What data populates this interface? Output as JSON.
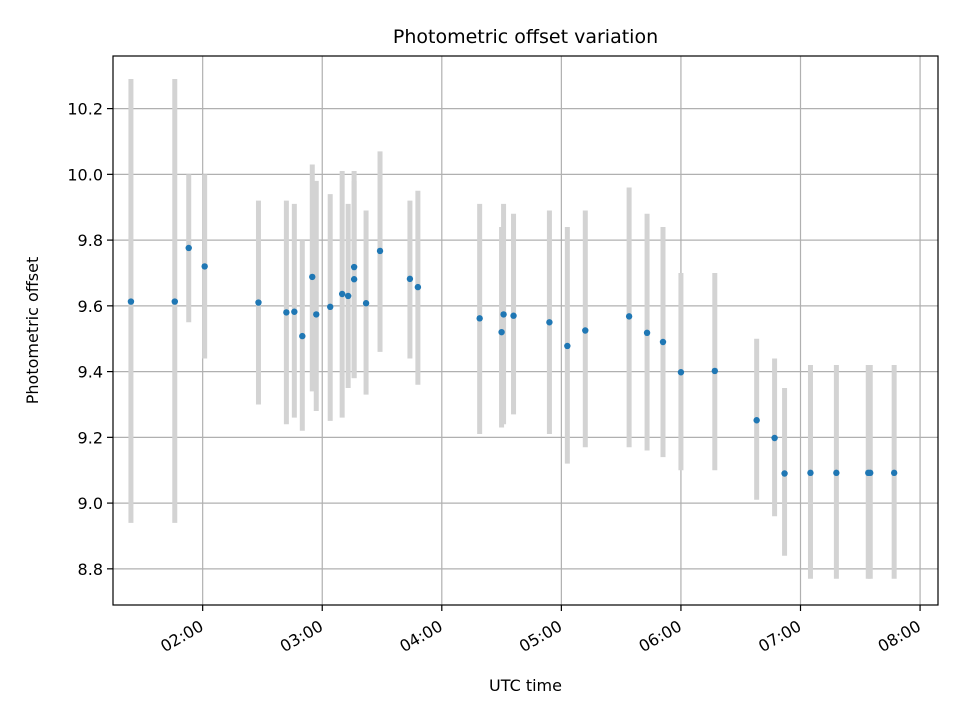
{
  "chart_data": {
    "type": "scatter",
    "title": "Photometric offset variation",
    "xlabel": "UTC time",
    "ylabel": "Photometric offset",
    "x_unit": "hours UTC",
    "xlim": [
      "01:15",
      "08:09"
    ],
    "ylim": [
      8.69,
      10.36
    ],
    "x_ticks": [
      {
        "time": "02:00",
        "label": "02:00"
      },
      {
        "time": "03:00",
        "label": "03:00"
      },
      {
        "time": "04:00",
        "label": "04:00"
      },
      {
        "time": "05:00",
        "label": "05:00"
      },
      {
        "time": "06:00",
        "label": "06:00"
      },
      {
        "time": "07:00",
        "label": "07:00"
      },
      {
        "time": "08:00",
        "label": "08:00"
      }
    ],
    "y_ticks": [
      {
        "value": 8.8,
        "label": "8.8"
      },
      {
        "value": 9.0,
        "label": "9.0"
      },
      {
        "value": 9.2,
        "label": "9.2"
      },
      {
        "value": 9.4,
        "label": "9.4"
      },
      {
        "value": 9.6,
        "label": "9.6"
      },
      {
        "value": 9.8,
        "label": "9.8"
      },
      {
        "value": 10.0,
        "label": "10.0"
      },
      {
        "value": 10.2,
        "label": "10.2"
      }
    ],
    "grid": true,
    "marker_color": "#1f77b4",
    "errorbar_color": "#d3d3d3",
    "points": [
      {
        "time": "01:24",
        "y": 9.613,
        "lo": 8.94,
        "hi": 10.29
      },
      {
        "time": "01:46",
        "y": 9.613,
        "lo": 8.94,
        "hi": 10.29
      },
      {
        "time": "01:53",
        "y": 9.776,
        "lo": 9.55,
        "hi": 10.0
      },
      {
        "time": "02:01",
        "y": 9.72,
        "lo": 9.44,
        "hi": 10.0
      },
      {
        "time": "02:28",
        "y": 9.61,
        "lo": 9.3,
        "hi": 9.92
      },
      {
        "time": "02:42",
        "y": 9.58,
        "lo": 9.24,
        "hi": 9.92
      },
      {
        "time": "02:46",
        "y": 9.582,
        "lo": 9.26,
        "hi": 9.91
      },
      {
        "time": "02:50",
        "y": 9.508,
        "lo": 9.22,
        "hi": 9.8
      },
      {
        "time": "02:55",
        "y": 9.688,
        "lo": 9.34,
        "hi": 10.03
      },
      {
        "time": "02:57",
        "y": 9.574,
        "lo": 9.28,
        "hi": 9.98
      },
      {
        "time": "03:04",
        "y": 9.597,
        "lo": 9.25,
        "hi": 9.94
      },
      {
        "time": "03:10",
        "y": 9.636,
        "lo": 9.26,
        "hi": 10.01
      },
      {
        "time": "03:13",
        "y": 9.63,
        "lo": 9.35,
        "hi": 9.91
      },
      {
        "time": "03:16",
        "y": 9.718,
        "lo": 9.38,
        "hi": 10.01
      },
      {
        "time": "03:16",
        "y": 9.681,
        "lo": 9.38,
        "hi": 9.98
      },
      {
        "time": "03:22",
        "y": 9.608,
        "lo": 9.33,
        "hi": 9.89
      },
      {
        "time": "03:29",
        "y": 9.767,
        "lo": 9.46,
        "hi": 10.07
      },
      {
        "time": "03:44",
        "y": 9.682,
        "lo": 9.44,
        "hi": 9.92
      },
      {
        "time": "03:48",
        "y": 9.657,
        "lo": 9.36,
        "hi": 9.95
      },
      {
        "time": "04:19",
        "y": 9.562,
        "lo": 9.21,
        "hi": 9.91
      },
      {
        "time": "04:30",
        "y": 9.52,
        "lo": 9.23,
        "hi": 9.84
      },
      {
        "time": "04:31",
        "y": 9.574,
        "lo": 9.24,
        "hi": 9.91
      },
      {
        "time": "04:36",
        "y": 9.57,
        "lo": 9.27,
        "hi": 9.88
      },
      {
        "time": "04:54",
        "y": 9.55,
        "lo": 9.21,
        "hi": 9.89
      },
      {
        "time": "05:03",
        "y": 9.478,
        "lo": 9.12,
        "hi": 9.84
      },
      {
        "time": "05:12",
        "y": 9.525,
        "lo": 9.17,
        "hi": 9.89
      },
      {
        "time": "05:34",
        "y": 9.568,
        "lo": 9.17,
        "hi": 9.96
      },
      {
        "time": "05:43",
        "y": 9.518,
        "lo": 9.16,
        "hi": 9.88
      },
      {
        "time": "05:51",
        "y": 9.49,
        "lo": 9.14,
        "hi": 9.84
      },
      {
        "time": "06:00",
        "y": 9.398,
        "lo": 9.1,
        "hi": 9.7
      },
      {
        "time": "06:17",
        "y": 9.402,
        "lo": 9.1,
        "hi": 9.7
      },
      {
        "time": "06:38",
        "y": 9.252,
        "lo": 9.01,
        "hi": 9.5
      },
      {
        "time": "06:47",
        "y": 9.198,
        "lo": 8.96,
        "hi": 9.44
      },
      {
        "time": "06:52",
        "y": 9.09,
        "lo": 8.84,
        "hi": 9.35
      },
      {
        "time": "07:05",
        "y": 9.092,
        "lo": 8.77,
        "hi": 9.42
      },
      {
        "time": "07:18",
        "y": 9.092,
        "lo": 8.77,
        "hi": 9.42
      },
      {
        "time": "07:34",
        "y": 9.092,
        "lo": 8.77,
        "hi": 9.42
      },
      {
        "time": "07:35",
        "y": 9.092,
        "lo": 8.77,
        "hi": 9.42
      },
      {
        "time": "07:47",
        "y": 9.092,
        "lo": 8.77,
        "hi": 9.42
      }
    ]
  }
}
